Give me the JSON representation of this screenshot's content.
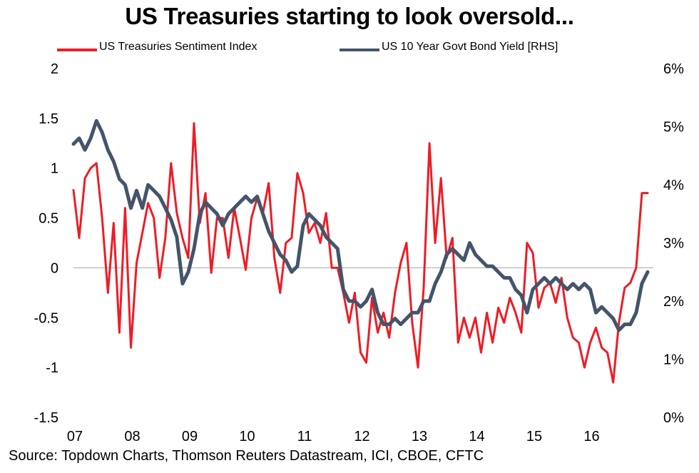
{
  "header": {
    "title": "US Treasuries starting to look oversold..."
  },
  "legend": {
    "sentiment_label": "US Treasuries Sentiment Index",
    "yield_label": "US 10 Year Govt Bond Yield [RHS]"
  },
  "footer": {
    "source": "Source: Topdown Charts, Thomson Reuters Datastream, ICI, CBOE, CFTC"
  },
  "colors": {
    "sentiment": "#ee1c25",
    "yield": "#44546a",
    "axis": "#bfbfbf"
  },
  "chart_data": {
    "type": "line",
    "title": "US Treasuries starting to look oversold...",
    "x_ticks": [
      "07",
      "08",
      "09",
      "10",
      "11",
      "12",
      "13",
      "14",
      "15",
      "16"
    ],
    "x_range": [
      2007.0,
      2017.1
    ],
    "left_axis": {
      "range": [
        -1.5,
        2
      ],
      "ticks": [
        "-1.5",
        "-1",
        "-0.5",
        "0",
        "0.5",
        "1",
        "1.5",
        "2"
      ]
    },
    "right_axis": {
      "range": [
        0,
        6
      ],
      "ticks": [
        "0%",
        "1%",
        "2%",
        "3%",
        "4%",
        "5%",
        "6%"
      ]
    },
    "grid": false,
    "legend_position": "top",
    "series": [
      {
        "name": "US Treasuries Sentiment Index",
        "axis": "left",
        "x": [
          2007.0,
          2007.1,
          2007.2,
          2007.3,
          2007.4,
          2007.5,
          2007.6,
          2007.7,
          2007.8,
          2007.9,
          2008.0,
          2008.1,
          2008.2,
          2008.3,
          2008.4,
          2008.5,
          2008.6,
          2008.7,
          2008.8,
          2008.9,
          2009.0,
          2009.1,
          2009.2,
          2009.3,
          2009.4,
          2009.5,
          2009.6,
          2009.7,
          2009.8,
          2009.9,
          2010.0,
          2010.1,
          2010.2,
          2010.3,
          2010.4,
          2010.5,
          2010.6,
          2010.7,
          2010.8,
          2010.9,
          2011.0,
          2011.1,
          2011.2,
          2011.3,
          2011.4,
          2011.5,
          2011.6,
          2011.7,
          2011.8,
          2011.9,
          2012.0,
          2012.1,
          2012.2,
          2012.3,
          2012.4,
          2012.5,
          2012.6,
          2012.7,
          2012.8,
          2012.9,
          2013.0,
          2013.1,
          2013.2,
          2013.3,
          2013.4,
          2013.5,
          2013.6,
          2013.7,
          2013.8,
          2013.9,
          2014.0,
          2014.1,
          2014.2,
          2014.3,
          2014.4,
          2014.5,
          2014.6,
          2014.7,
          2014.8,
          2014.9,
          2015.0,
          2015.1,
          2015.2,
          2015.3,
          2015.4,
          2015.5,
          2015.6,
          2015.7,
          2015.8,
          2015.9,
          2016.0,
          2016.1,
          2016.2,
          2016.3,
          2016.4,
          2016.5,
          2016.6,
          2016.7,
          2016.8,
          2016.9,
          2017.0
        ],
        "values": [
          0.78,
          0.3,
          0.9,
          1.0,
          1.05,
          0.5,
          -0.25,
          0.45,
          -0.65,
          0.6,
          -0.8,
          0.05,
          0.35,
          0.65,
          0.5,
          -0.1,
          0.3,
          1.05,
          0.55,
          0.3,
          0.1,
          1.45,
          0.45,
          0.75,
          -0.05,
          0.5,
          0.5,
          0.1,
          0.6,
          0.3,
          -0.02,
          0.5,
          0.7,
          0.55,
          0.85,
          0.1,
          -0.25,
          0.25,
          0.3,
          0.95,
          0.75,
          0.35,
          0.45,
          0.25,
          0.55,
          0.0,
          0.0,
          -0.25,
          -0.55,
          -0.25,
          -0.85,
          -0.95,
          -0.3,
          -0.65,
          -0.45,
          -0.7,
          -0.25,
          0.05,
          0.25,
          -0.55,
          -1.0,
          -0.2,
          1.25,
          0.25,
          0.9,
          0.1,
          0.3,
          -0.75,
          -0.5,
          -0.7,
          -0.5,
          -0.85,
          -0.45,
          -0.75,
          -0.4,
          -0.55,
          -0.3,
          -0.45,
          -0.65,
          0.25,
          0.15,
          -0.4,
          -0.2,
          -0.15,
          -0.35,
          -0.1,
          -0.5,
          -0.7,
          -0.75,
          -1.0,
          -0.75,
          -0.6,
          -0.8,
          -0.85,
          -1.15,
          -0.55,
          -0.2,
          -0.15,
          0.0,
          0.75,
          0.75
        ]
      },
      {
        "name": "US 10 Year Govt Bond Yield [RHS]",
        "axis": "right",
        "x": [
          2007.0,
          2007.1,
          2007.2,
          2007.3,
          2007.4,
          2007.5,
          2007.6,
          2007.7,
          2007.8,
          2007.9,
          2008.0,
          2008.1,
          2008.2,
          2008.3,
          2008.4,
          2008.5,
          2008.6,
          2008.7,
          2008.8,
          2008.9,
          2009.0,
          2009.1,
          2009.2,
          2009.3,
          2009.4,
          2009.5,
          2009.6,
          2009.7,
          2009.8,
          2009.9,
          2010.0,
          2010.1,
          2010.2,
          2010.3,
          2010.4,
          2010.5,
          2010.6,
          2010.7,
          2010.8,
          2010.9,
          2011.0,
          2011.1,
          2011.2,
          2011.3,
          2011.4,
          2011.5,
          2011.6,
          2011.7,
          2011.8,
          2011.9,
          2012.0,
          2012.1,
          2012.2,
          2012.3,
          2012.4,
          2012.5,
          2012.6,
          2012.7,
          2012.8,
          2012.9,
          2013.0,
          2013.1,
          2013.2,
          2013.3,
          2013.4,
          2013.5,
          2013.6,
          2013.7,
          2013.8,
          2013.9,
          2014.0,
          2014.1,
          2014.2,
          2014.3,
          2014.4,
          2014.5,
          2014.6,
          2014.7,
          2014.8,
          2014.9,
          2015.0,
          2015.1,
          2015.2,
          2015.3,
          2015.4,
          2015.5,
          2015.6,
          2015.7,
          2015.8,
          2015.9,
          2016.0,
          2016.1,
          2016.2,
          2016.3,
          2016.4,
          2016.5,
          2016.6,
          2016.7,
          2016.8,
          2016.9,
          2017.0
        ],
        "values": [
          4.7,
          4.8,
          4.6,
          4.8,
          5.1,
          4.9,
          4.6,
          4.4,
          4.1,
          4.0,
          3.6,
          3.9,
          3.6,
          4.0,
          3.9,
          3.8,
          3.6,
          3.4,
          3.1,
          2.3,
          2.5,
          2.9,
          3.5,
          3.7,
          3.6,
          3.5,
          3.3,
          3.5,
          3.6,
          3.7,
          3.8,
          3.7,
          3.8,
          3.5,
          3.2,
          3.0,
          2.8,
          2.7,
          2.5,
          2.6,
          3.3,
          3.5,
          3.4,
          3.3,
          3.1,
          3.0,
          2.9,
          2.2,
          2.0,
          2.0,
          1.9,
          2.0,
          2.2,
          1.8,
          1.6,
          1.6,
          1.7,
          1.6,
          1.7,
          1.8,
          1.8,
          2.0,
          2.0,
          2.3,
          2.5,
          2.8,
          2.9,
          2.8,
          2.7,
          3.0,
          2.8,
          2.7,
          2.6,
          2.6,
          2.5,
          2.4,
          2.4,
          2.2,
          2.1,
          1.8,
          2.2,
          2.3,
          2.4,
          2.3,
          2.4,
          2.3,
          2.2,
          2.3,
          2.2,
          2.3,
          2.2,
          1.8,
          1.9,
          1.8,
          1.7,
          1.5,
          1.6,
          1.6,
          1.8,
          2.3,
          2.5
        ]
      }
    ]
  }
}
